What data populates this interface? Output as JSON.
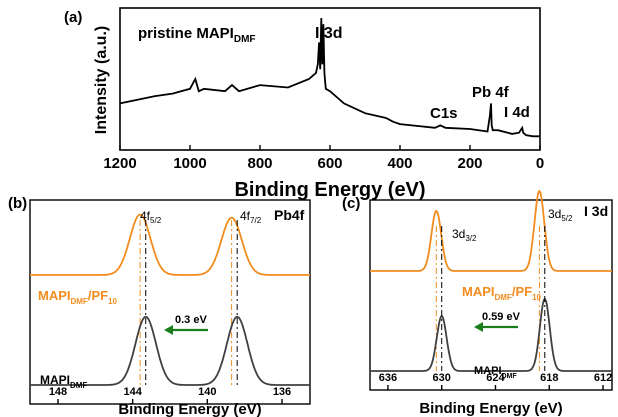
{
  "chart_data": [
    {
      "panel": "(a)",
      "type": "line",
      "xlabel": "Binding Energy (eV)",
      "ylabel": "Intensity (a.u.)",
      "xlim": [
        1200,
        0
      ],
      "xticks": [
        1200,
        1000,
        800,
        600,
        400,
        200,
        0
      ],
      "annotations": {
        "sample_main": "pristine MAPI",
        "sample_sub": "DMF",
        "i3d": "I 3d",
        "pb4f": "Pb 4f",
        "c1s": "C1s",
        "i4d": "I 4d"
      },
      "series": [
        {
          "color": "#000000",
          "x": [
            1200,
            1150,
            1100,
            1050,
            1000,
            985,
            975,
            960,
            900,
            880,
            860,
            800,
            720,
            660,
            640,
            635,
            631,
            628,
            625,
            622,
            619,
            616,
            612,
            600,
            560,
            500,
            440,
            420,
            400,
            300,
            285,
            270,
            200,
            150,
            143,
            140,
            138,
            135,
            120,
            80,
            60,
            51,
            48,
            40,
            20,
            0
          ],
          "y": [
            0.3,
            0.33,
            0.36,
            0.38,
            0.42,
            0.5,
            0.4,
            0.42,
            0.4,
            0.45,
            0.4,
            0.45,
            0.43,
            0.5,
            0.55,
            0.62,
            0.8,
            0.58,
            1.0,
            0.62,
            0.95,
            0.55,
            0.42,
            0.4,
            0.3,
            0.22,
            0.18,
            0.15,
            0.13,
            0.1,
            0.12,
            0.1,
            0.09,
            0.07,
            0.2,
            0.3,
            0.12,
            0.08,
            0.08,
            0.05,
            0.06,
            0.1,
            0.06,
            0.04,
            0.03,
            0.03
          ]
        }
      ]
    },
    {
      "panel": "(b)",
      "type": "line",
      "title": "Pb4f",
      "xlabel": "Binding Energy (eV)",
      "xlim": [
        149.5,
        134.5
      ],
      "xticks": [
        148,
        144,
        140,
        136
      ],
      "peak_labels": [
        {
          "main": "4f",
          "sub": "5/2"
        },
        {
          "main": "4f",
          "sub": "7/2"
        }
      ],
      "shift_label": "0.3 eV",
      "series": [
        {
          "label_main": "MAPI",
          "label_sub": "DMF",
          "label_tail": "/PF",
          "label_tail_sub": "10",
          "color": "#f28c1e",
          "offset": 1.0,
          "peaks": [
            143.6,
            138.7
          ],
          "sigma": 0.55,
          "heights": [
            0.55,
            0.52
          ]
        },
        {
          "label_main": "MAPI",
          "label_sub": "DMF",
          "color": "#404040",
          "offset": 0.0,
          "peaks": [
            143.3,
            138.4
          ],
          "sigma": 0.55,
          "heights": [
            0.62,
            0.62
          ]
        }
      ]
    },
    {
      "panel": "(c)",
      "type": "line",
      "title": "I 3d",
      "xlabel": "Binding Energy (eV)",
      "xlim": [
        638,
        611
      ],
      "xticks": [
        636,
        630,
        624,
        618,
        612
      ],
      "peak_labels": [
        {
          "main": "3d",
          "sub": "3/2"
        },
        {
          "main": "3d",
          "sub": "5/2"
        }
      ],
      "shift_label": "0.59 eV",
      "series": [
        {
          "label_main": "MAPI",
          "label_sub": "DMF",
          "label_tail": "/PF",
          "label_tail_sub": "10",
          "color": "#f28c1e",
          "offset": 1.0,
          "peaks": [
            630.6,
            619.1
          ],
          "sigma": 0.55,
          "heights": [
            0.6,
            0.8
          ]
        },
        {
          "label_main": "MAPI",
          "label_sub": "DMF",
          "color": "#404040",
          "offset": 0.0,
          "peaks": [
            630.0,
            618.5
          ],
          "sigma": 0.55,
          "heights": [
            0.55,
            0.72
          ]
        }
      ]
    }
  ]
}
